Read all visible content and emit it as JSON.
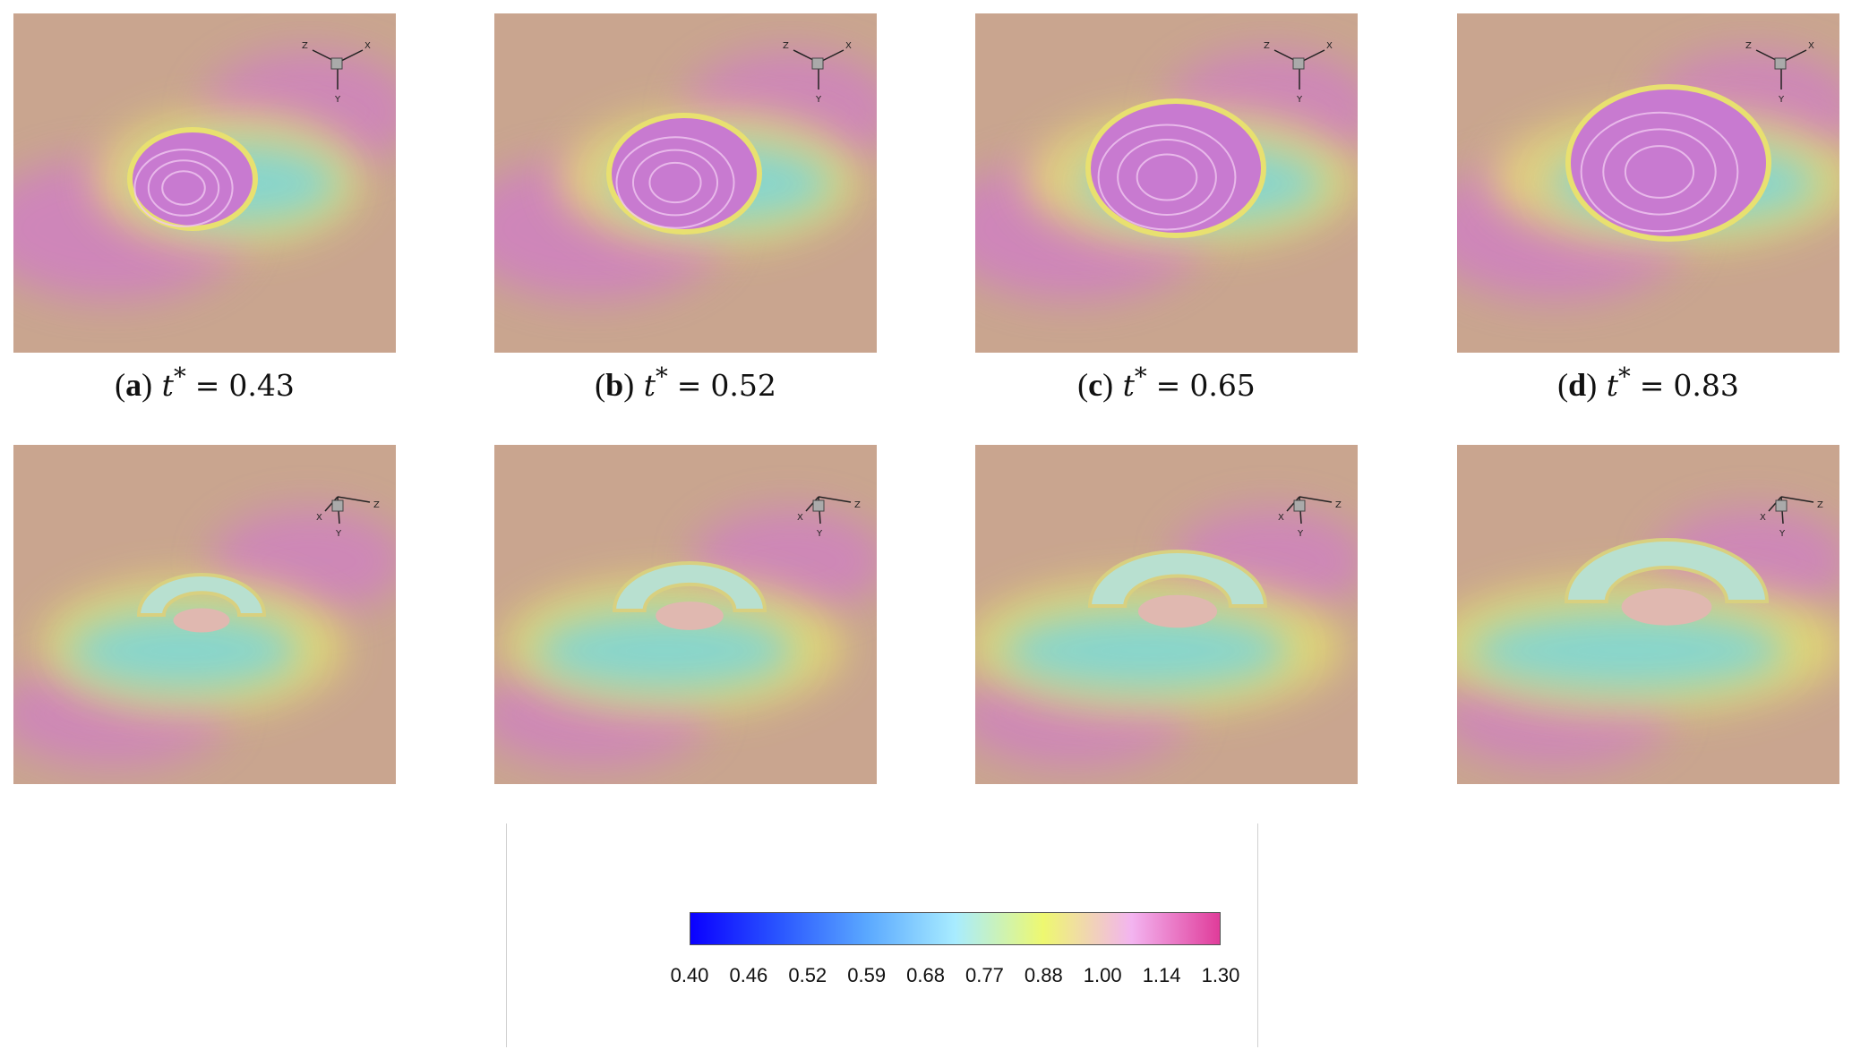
{
  "panels_top": [
    {
      "label": "a",
      "t_label": "t",
      "t_sup": "*",
      "eq": "=",
      "value": "0.43",
      "view": "iso"
    },
    {
      "label": "b",
      "t_label": "t",
      "t_sup": "*",
      "eq": "=",
      "value": "0.52",
      "view": "iso"
    },
    {
      "label": "c",
      "t_label": "t",
      "t_sup": "*",
      "eq": "=",
      "value": "0.65",
      "view": "iso"
    },
    {
      "label": "d",
      "t_label": "t",
      "t_sup": "*",
      "eq": "=",
      "value": "0.83",
      "view": "iso"
    }
  ],
  "panels_bottom": [
    {
      "view": "side"
    },
    {
      "view": "side"
    },
    {
      "view": "side"
    },
    {
      "view": "side"
    }
  ],
  "axes_top": {
    "a": "Z",
    "b": "X",
    "c": "Y"
  },
  "axes_bottom": {
    "a": "X",
    "b": "Z",
    "c": "Y"
  },
  "colorbar": {
    "ticks": [
      "0.40",
      "0.46",
      "0.52",
      "0.59",
      "0.68",
      "0.77",
      "0.88",
      "1.00",
      "1.14",
      "1.30"
    ],
    "colors": [
      "#0a00ff",
      "#2a55ff",
      "#5aa8ff",
      "#a8ecff",
      "#eef870",
      "#f3b4f0",
      "#e03c9a"
    ]
  },
  "colors": {
    "background": "#c9a58f",
    "magenta": "#d07cc8",
    "cyan": "#7fd6d6",
    "yellow": "#e6e070"
  }
}
